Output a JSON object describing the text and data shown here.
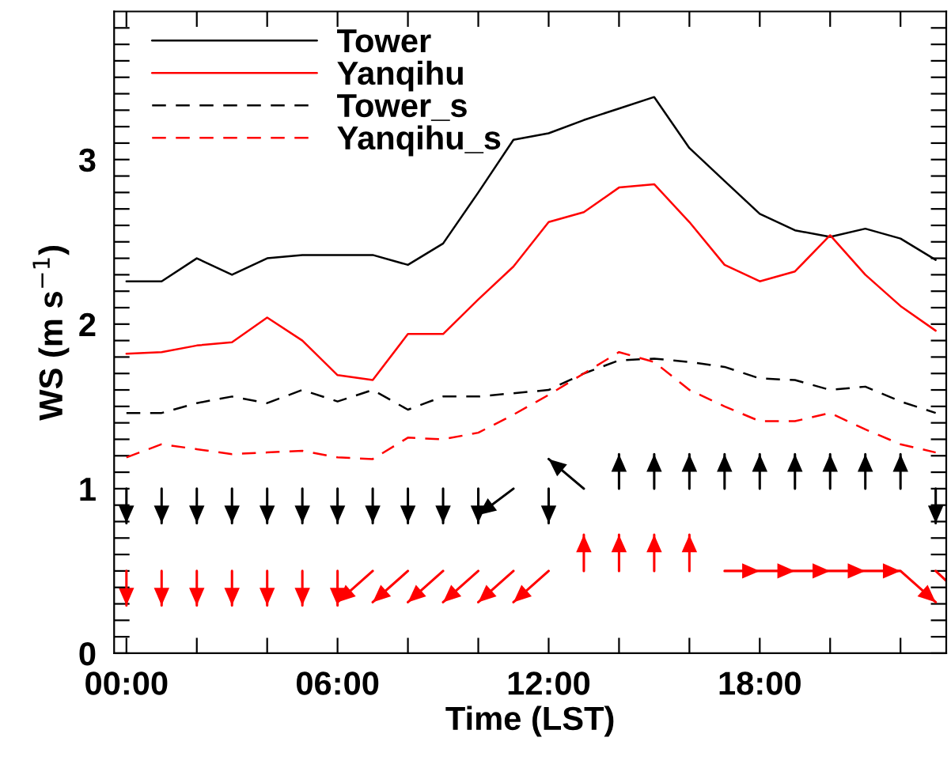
{
  "chart_data": {
    "type": "line",
    "xlabel": "Time (LST)",
    "ylabel": "WS (m s$^{−1}$)",
    "x": [
      0,
      1,
      2,
      3,
      4,
      5,
      6,
      7,
      8,
      9,
      10,
      11,
      12,
      13,
      14,
      15,
      16,
      17,
      18,
      19,
      20,
      21,
      22,
      23
    ],
    "xlim": [
      -0.35,
      23.3
    ],
    "ylim": [
      0,
      3.9
    ],
    "xticks": [
      {
        "value": 0,
        "label": "00:00"
      },
      {
        "value": 2,
        "label": null
      },
      {
        "value": 4,
        "label": null
      },
      {
        "value": 6,
        "label": "06:00"
      },
      {
        "value": 8,
        "label": null
      },
      {
        "value": 10,
        "label": null
      },
      {
        "value": 12,
        "label": "12:00"
      },
      {
        "value": 14,
        "label": null
      },
      {
        "value": 16,
        "label": null
      },
      {
        "value": 18,
        "label": "18:00"
      },
      {
        "value": 20,
        "label": null
      },
      {
        "value": 22,
        "label": null
      }
    ],
    "yticks": [
      0,
      {
        "value": 0.1,
        "label": null
      },
      {
        "value": 0.2,
        "label": null
      },
      {
        "value": 0.3,
        "label": null
      },
      {
        "value": 0.4,
        "label": null
      },
      {
        "value": 0.5,
        "label": null
      },
      {
        "value": 0.6,
        "label": null
      },
      {
        "value": 0.7,
        "label": null
      },
      {
        "value": 0.8,
        "label": null
      },
      {
        "value": 0.9,
        "label": null
      },
      1,
      {
        "value": 1.1,
        "label": null
      },
      {
        "value": 1.2,
        "label": null
      },
      {
        "value": 1.3,
        "label": null
      },
      {
        "value": 1.4,
        "label": null
      },
      {
        "value": 1.5,
        "label": null
      },
      {
        "value": 1.6,
        "label": null
      },
      {
        "value": 1.7,
        "label": null
      },
      {
        "value": 1.8,
        "label": null
      },
      {
        "value": 1.9,
        "label": null
      },
      2,
      {
        "value": 2.1,
        "label": null
      },
      {
        "value": 2.2,
        "label": null
      },
      {
        "value": 2.3,
        "label": null
      },
      {
        "value": 2.4,
        "label": null
      },
      {
        "value": 2.5,
        "label": null
      },
      {
        "value": 2.6,
        "label": null
      },
      {
        "value": 2.7,
        "label": null
      },
      {
        "value": 2.8,
        "label": null
      },
      {
        "value": 2.9,
        "label": null
      },
      3,
      {
        "value": 3.1,
        "label": null
      },
      {
        "value": 3.2,
        "label": null
      },
      {
        "value": 3.3,
        "label": null
      },
      {
        "value": 3.4,
        "label": null
      },
      {
        "value": 3.5,
        "label": null
      },
      {
        "value": 3.6,
        "label": null
      },
      {
        "value": 3.7,
        "label": null
      },
      {
        "value": 3.8,
        "label": null
      }
    ],
    "legend": "top left",
    "grid": false,
    "series": [
      {
        "name": "Tower",
        "color": "#000000",
        "line_style": "solid",
        "values": [
          2.26,
          2.26,
          2.4,
          2.3,
          2.4,
          2.42,
          2.42,
          2.42,
          2.36,
          2.49,
          2.8,
          3.12,
          3.16,
          3.24,
          3.31,
          3.38,
          3.07,
          2.87,
          2.67,
          2.57,
          2.53,
          2.58,
          2.52,
          2.39
        ]
      },
      {
        "name": "Yanqihu",
        "color": "#ff0000",
        "line_style": "solid",
        "values": [
          1.82,
          1.83,
          1.87,
          1.89,
          2.04,
          1.9,
          1.69,
          1.66,
          1.94,
          1.94,
          2.15,
          2.35,
          2.62,
          2.68,
          2.83,
          2.85,
          2.62,
          2.36,
          2.26,
          2.32,
          2.54,
          2.3,
          2.11,
          1.96
        ]
      },
      {
        "name": "Tower_s",
        "color": "#000000",
        "line_style": "dashed",
        "values": [
          1.46,
          1.46,
          1.52,
          1.56,
          1.52,
          1.6,
          1.53,
          1.6,
          1.48,
          1.56,
          1.56,
          1.58,
          1.6,
          1.7,
          1.78,
          1.79,
          1.77,
          1.74,
          1.67,
          1.66,
          1.6,
          1.62,
          1.53,
          1.46
        ]
      },
      {
        "name": "Yanqihu_s",
        "color": "#ff0000",
        "line_style": "dashed",
        "values": [
          1.19,
          1.27,
          1.24,
          1.21,
          1.22,
          1.23,
          1.19,
          1.18,
          1.31,
          1.3,
          1.34,
          1.45,
          1.57,
          1.7,
          1.83,
          1.77,
          1.6,
          1.5,
          1.41,
          1.41,
          1.46,
          1.36,
          1.27,
          1.22
        ]
      },
      {
        "color": "#000000",
        "x": [
          0,
          0,
          null,
          1,
          1,
          null,
          2,
          2,
          null,
          3,
          3,
          null,
          4,
          4,
          null,
          5,
          5,
          null,
          6,
          6,
          null,
          7,
          7,
          null,
          8,
          8,
          null,
          9,
          9,
          null,
          10,
          10,
          null,
          11,
          10,
          null,
          12,
          12,
          null,
          13,
          12,
          null,
          14,
          14,
          null,
          15,
          15,
          null,
          16,
          16,
          null,
          17,
          17,
          null,
          18,
          18,
          null,
          19,
          19,
          null,
          20,
          20,
          null,
          21,
          21,
          null,
          22,
          22,
          null,
          23,
          23,
          null
        ],
        "values": [
          1,
          0.79,
          null,
          1,
          0.79,
          null,
          1,
          0.79,
          null,
          1,
          0.79,
          null,
          1,
          0.79,
          null,
          1,
          0.79,
          null,
          1,
          0.79,
          null,
          1,
          0.79,
          null,
          1,
          0.79,
          null,
          1,
          0.79,
          null,
          1,
          0.79,
          null,
          1,
          0.84,
          null,
          1,
          0.79,
          null,
          1,
          1.18,
          null,
          1,
          1.21,
          null,
          1,
          1.21,
          null,
          1,
          1.21,
          null,
          1,
          1.21,
          null,
          1,
          1.21,
          null,
          1,
          1.21,
          null,
          1,
          1.21,
          null,
          1,
          1.21,
          null,
          1,
          1.21,
          null,
          1,
          0.79,
          null
        ]
      },
      {
        "color": "#ff0000",
        "x": [
          0,
          0,
          null,
          1,
          1,
          null,
          2,
          2,
          null,
          3,
          3,
          null,
          4,
          4,
          null,
          5,
          5,
          null,
          6,
          6,
          null,
          7,
          6,
          null,
          8,
          7,
          null,
          9,
          8,
          null,
          10,
          9,
          null,
          11,
          10,
          null,
          12,
          11,
          null,
          13,
          13,
          null,
          14,
          14,
          null,
          15,
          15,
          null,
          16,
          16,
          null,
          17,
          18,
          null,
          18,
          19,
          null,
          19,
          20,
          null,
          20,
          21,
          null,
          21,
          22,
          null,
          22,
          23,
          null,
          23,
          23.3,
          null
        ],
        "values": [
          0.5,
          0.29,
          null,
          0.5,
          0.29,
          null,
          0.5,
          0.29,
          null,
          0.5,
          0.29,
          null,
          0.5,
          0.29,
          null,
          0.5,
          0.29,
          null,
          0.5,
          0.29,
          null,
          0.5,
          0.31,
          null,
          0.5,
          0.31,
          null,
          0.5,
          0.31,
          null,
          0.5,
          0.31,
          null,
          0.5,
          0.31,
          null,
          0.5,
          0.31,
          null,
          0.5,
          0.72,
          null,
          0.5,
          0.72,
          null,
          0.5,
          0.72,
          null,
          0.5,
          0.72,
          null,
          0.5,
          0.5,
          null,
          0.5,
          0.5,
          null,
          0.5,
          0.5,
          null,
          0.5,
          0.5,
          null,
          0.5,
          0.5,
          null,
          0.5,
          0.31,
          null,
          0.5,
          0.44,
          null
        ]
      }
    ]
  }
}
